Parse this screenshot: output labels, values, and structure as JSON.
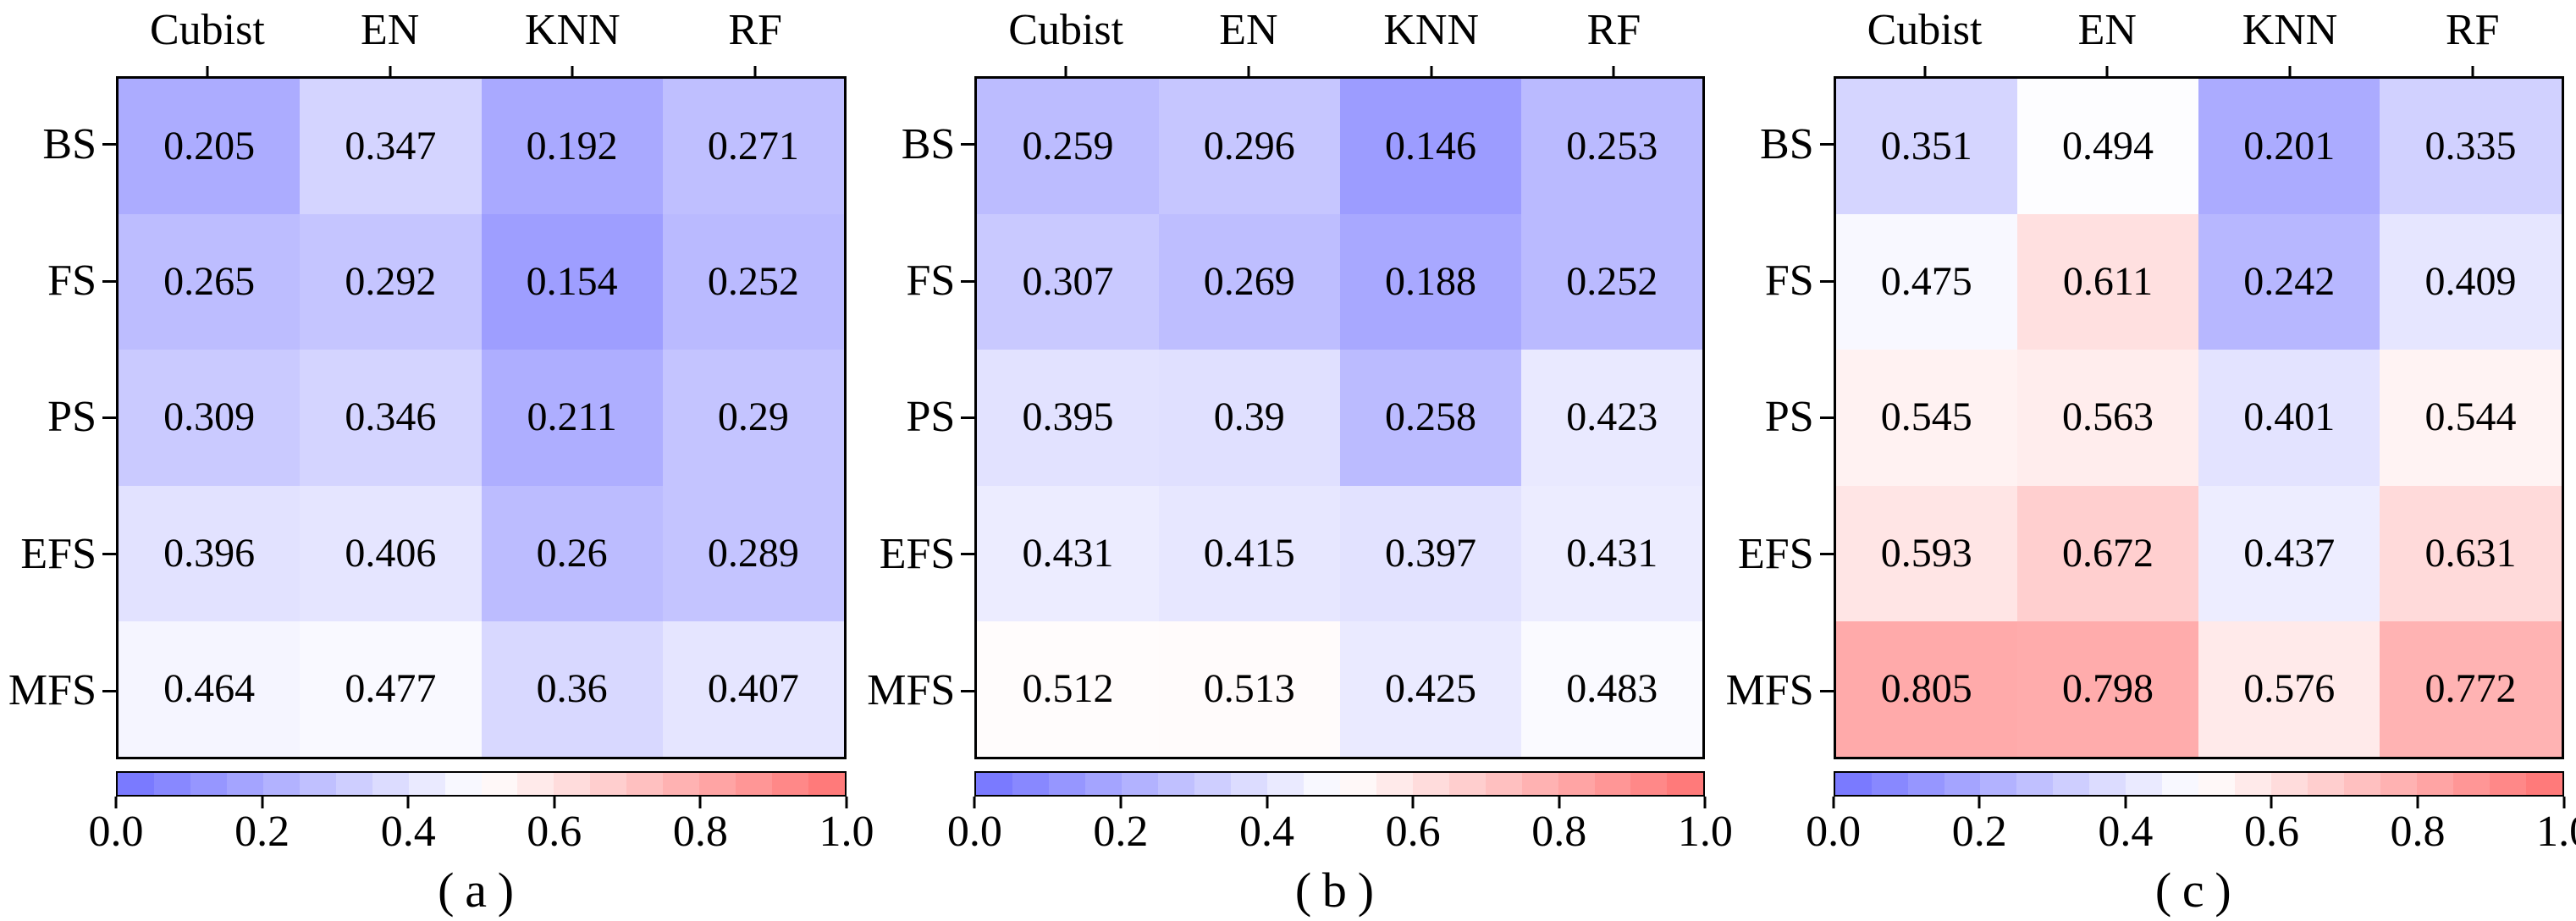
{
  "colors": {
    "background": "#ffffff",
    "border": "#000000",
    "text": "#000000",
    "colormap_low": "#7373ff",
    "colormap_mid": "#ffffff",
    "colormap_high": "#ff7373"
  },
  "chart_data": [
    {
      "type": "heatmap",
      "panel_id": "a",
      "caption": "(a)",
      "x_labels": [
        "Cubist",
        "EN",
        "KNN",
        "RF"
      ],
      "y_labels": [
        "BS",
        "FS",
        "PS",
        "EFS",
        "MFS"
      ],
      "values": [
        [
          0.205,
          0.347,
          0.192,
          0.271
        ],
        [
          0.265,
          0.292,
          0.154,
          0.252
        ],
        [
          0.309,
          0.346,
          0.211,
          0.29
        ],
        [
          0.396,
          0.406,
          0.26,
          0.289
        ],
        [
          0.464,
          0.477,
          0.36,
          0.407
        ]
      ],
      "value_labels": [
        [
          "0.205",
          "0.347",
          "0.192",
          "0.271"
        ],
        [
          "0.265",
          "0.292",
          "0.154",
          "0.252"
        ],
        [
          "0.309",
          "0.346",
          "0.211",
          "0.29"
        ],
        [
          "0.396",
          "0.406",
          "0.26",
          "0.289"
        ],
        [
          "0.464",
          "0.477",
          "0.36",
          "0.407"
        ]
      ],
      "vmin": 0.0,
      "vmax": 1.0,
      "colorbar": {
        "orientation": "horizontal",
        "position": "bottom",
        "steps": 20,
        "ticks": [
          "0.0",
          "0.2",
          "0.4",
          "0.6",
          "0.8",
          "1.0"
        ]
      }
    },
    {
      "type": "heatmap",
      "panel_id": "b",
      "caption": "(b)",
      "x_labels": [
        "Cubist",
        "EN",
        "KNN",
        "RF"
      ],
      "y_labels": [
        "BS",
        "FS",
        "PS",
        "EFS",
        "MFS"
      ],
      "values": [
        [
          0.259,
          0.296,
          0.146,
          0.253
        ],
        [
          0.307,
          0.269,
          0.188,
          0.252
        ],
        [
          0.395,
          0.39,
          0.258,
          0.423
        ],
        [
          0.431,
          0.415,
          0.397,
          0.431
        ],
        [
          0.512,
          0.513,
          0.425,
          0.483
        ]
      ],
      "value_labels": [
        [
          "0.259",
          "0.296",
          "0.146",
          "0.253"
        ],
        [
          "0.307",
          "0.269",
          "0.188",
          "0.252"
        ],
        [
          "0.395",
          "0.39",
          "0.258",
          "0.423"
        ],
        [
          "0.431",
          "0.415",
          "0.397",
          "0.431"
        ],
        [
          "0.512",
          "0.513",
          "0.425",
          "0.483"
        ]
      ],
      "vmin": 0.0,
      "vmax": 1.0,
      "colorbar": {
        "orientation": "horizontal",
        "position": "bottom",
        "steps": 20,
        "ticks": [
          "0.0",
          "0.2",
          "0.4",
          "0.6",
          "0.8",
          "1.0"
        ]
      }
    },
    {
      "type": "heatmap",
      "panel_id": "c",
      "caption": "(c)",
      "x_labels": [
        "Cubist",
        "EN",
        "KNN",
        "RF"
      ],
      "y_labels": [
        "BS",
        "FS",
        "PS",
        "EFS",
        "MFS"
      ],
      "values": [
        [
          0.351,
          0.494,
          0.201,
          0.335
        ],
        [
          0.475,
          0.611,
          0.242,
          0.409
        ],
        [
          0.545,
          0.563,
          0.401,
          0.544
        ],
        [
          0.593,
          0.672,
          0.437,
          0.631
        ],
        [
          0.805,
          0.798,
          0.576,
          0.772
        ]
      ],
      "value_labels": [
        [
          "0.351",
          "0.494",
          "0.201",
          "0.335"
        ],
        [
          "0.475",
          "0.611",
          "0.242",
          "0.409"
        ],
        [
          "0.545",
          "0.563",
          "0.401",
          "0.544"
        ],
        [
          "0.593",
          "0.672",
          "0.437",
          "0.631"
        ],
        [
          "0.805",
          "0.798",
          "0.576",
          "0.772"
        ]
      ],
      "vmin": 0.0,
      "vmax": 1.0,
      "colorbar": {
        "orientation": "horizontal",
        "position": "bottom",
        "steps": 20,
        "ticks": [
          "0.0",
          "0.2",
          "0.4",
          "0.6",
          "0.8",
          "1.0"
        ]
      }
    }
  ]
}
